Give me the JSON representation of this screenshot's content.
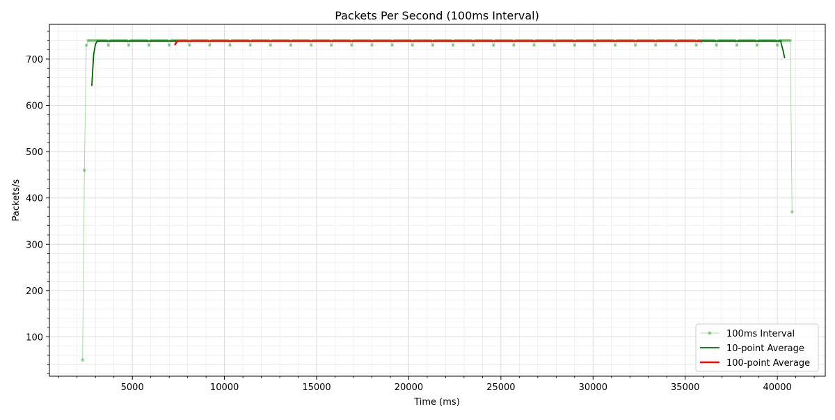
{
  "chart_data": {
    "type": "line",
    "title": "Packets Per Second (100ms Interval)",
    "xlabel": "Time (ms)",
    "ylabel": "Packets/s",
    "xlim": [
      500,
      42600
    ],
    "ylim": [
      15,
      775
    ],
    "x_ticks": [
      5000,
      10000,
      15000,
      20000,
      25000,
      30000,
      35000,
      40000
    ],
    "y_ticks": [
      100,
      200,
      300,
      400,
      500,
      600,
      700
    ],
    "grid": true,
    "legend_position": "lower-right",
    "series": [
      {
        "name": "100ms Interval",
        "color": "#2ca02c",
        "style": "line+markers-faint",
        "start_points": [
          [
            2300,
            50
          ],
          [
            2400,
            460
          ],
          [
            2500,
            730
          ],
          [
            2600,
            740
          ]
        ],
        "steady": {
          "x_start": 2700,
          "x_end": 40400,
          "step": 100,
          "value": 740,
          "dip_value": 730,
          "dip_period_ms": 1100,
          "dip_start": 3700
        },
        "end_points": [
          [
            40300,
            740
          ],
          [
            40400,
            740
          ],
          [
            40500,
            740
          ],
          [
            40600,
            740
          ],
          [
            40700,
            740
          ],
          [
            40800,
            370
          ]
        ]
      },
      {
        "name": "10-point Average",
        "color": "#006400",
        "style": "line",
        "start_points": [
          [
            2800,
            642
          ],
          [
            2900,
            710
          ],
          [
            3000,
            732
          ],
          [
            3100,
            739
          ]
        ],
        "steady_value": 739,
        "steady_range": [
          3100,
          40200
        ],
        "end_points": [
          [
            40200,
            735
          ],
          [
            40300,
            720
          ],
          [
            40400,
            702
          ]
        ]
      },
      {
        "name": "100-point Average",
        "color": "#ff0000",
        "style": "line-thick",
        "start_points": [
          [
            7300,
            730
          ],
          [
            7400,
            737
          ],
          [
            7500,
            739
          ]
        ],
        "steady_value": 739,
        "steady_range": [
          7500,
          35800
        ],
        "end_points": [
          [
            35900,
            737
          ]
        ]
      }
    ],
    "legend": [
      "100ms Interval",
      "10-point Average",
      "100-point Average"
    ]
  }
}
